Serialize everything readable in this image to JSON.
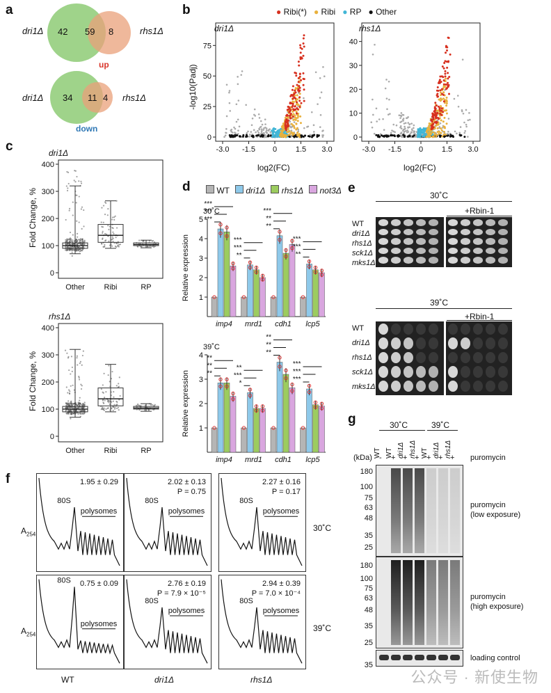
{
  "panels": {
    "a": "a",
    "b": "b",
    "c": "c",
    "d": "d",
    "e": "e",
    "f": "f",
    "g": "g"
  },
  "venn": {
    "up": {
      "left_label": "dri1Δ",
      "right_label": "rhs1Δ",
      "left_only": 42,
      "both": 59,
      "right_only": 8,
      "caption": "up",
      "caption_color": "#d9352b"
    },
    "down": {
      "left_label": "dri1Δ",
      "right_label": "rhs1Δ",
      "left_only": 34,
      "both": 11,
      "right_only": 4,
      "caption": "down",
      "caption_color": "#2f78b5"
    },
    "colors": {
      "left": "#9fd38a",
      "right": "#f2a98a"
    }
  },
  "volcano": {
    "legend": [
      {
        "label": "Ribi(*)",
        "color": "#d7301f"
      },
      {
        "label": "Ribi",
        "color": "#e9b13d"
      },
      {
        "label": "RP",
        "color": "#41b6d6"
      },
      {
        "label": "Other",
        "color": "#111111"
      }
    ],
    "ylabel": "-log10(Padj)",
    "xlabel": "log2(FC)",
    "left": {
      "title": "dri1Δ",
      "yticks": [
        "0",
        "25",
        "50",
        "75"
      ],
      "xticks": [
        "-3.0",
        "-1.5",
        "0",
        "1.5",
        "3.0"
      ]
    },
    "right": {
      "title": "rhs1Δ",
      "yticks": [
        "0",
        "10",
        "20",
        "30",
        "40"
      ],
      "xticks": [
        "-3.0",
        "-1.5",
        "0",
        "1.5",
        "3.0"
      ]
    }
  },
  "boxplots": {
    "ylabel": "Fold Change, %",
    "categories": [
      "Other",
      "Ribi",
      "RP"
    ],
    "yticks": [
      "0",
      "100",
      "200",
      "300",
      "400"
    ],
    "top": {
      "title": "dri1Δ"
    },
    "bottom": {
      "title": "rhs1Δ"
    }
  },
  "bars": {
    "legend": [
      {
        "label": "WT",
        "color": "#b5b5b5"
      },
      {
        "label": "dri1Δ",
        "color": "#8ec9ea"
      },
      {
        "label": "rhs1Δ",
        "color": "#9ccc5f"
      },
      {
        "label": "not3Δ",
        "color": "#d9a6df"
      }
    ],
    "ylabel": "Relative expression",
    "genes": [
      "imp4",
      "mrd1",
      "cdh1",
      "lcp5"
    ],
    "yticks": [
      "1",
      "2",
      "3",
      "4",
      "5"
    ],
    "sig30": [
      [
        "***",
        "***",
        "***"
      ],
      [
        "**",
        "***",
        "***"
      ],
      [
        "**",
        "**",
        "***"
      ],
      [
        "**",
        "***",
        "***"
      ]
    ],
    "sig39": [
      [
        "**",
        "**",
        "**"
      ],
      [
        "*",
        "***",
        "**"
      ],
      [
        "**",
        "**",
        "**"
      ],
      [
        "***",
        "***",
        "***"
      ]
    ]
  },
  "chart_data": [
    {
      "type": "bar",
      "title": "30˚C",
      "categories": [
        "imp4",
        "mrd1",
        "cdh1",
        "lcp5"
      ],
      "series": [
        {
          "name": "WT",
          "values": [
            1,
            1,
            1,
            1
          ]
        },
        {
          "name": "dri1Δ",
          "values": [
            4.5,
            2.65,
            4.15,
            2.7
          ]
        },
        {
          "name": "rhs1Δ",
          "values": [
            4.35,
            2.4,
            3.25,
            2.4
          ]
        },
        {
          "name": "not3Δ",
          "values": [
            2.6,
            2.0,
            3.7,
            2.25
          ]
        }
      ],
      "ylabel": "Relative expression",
      "ylim": [
        0,
        5
      ]
    },
    {
      "type": "bar",
      "title": "39˚C",
      "categories": [
        "imp4",
        "mrd1",
        "cdh1",
        "lcp5"
      ],
      "series": [
        {
          "name": "WT",
          "values": [
            1,
            1,
            1,
            1
          ]
        },
        {
          "name": "dri1Δ",
          "values": [
            2.85,
            2.45,
            3.7,
            2.6
          ]
        },
        {
          "name": "rhs1Δ",
          "values": [
            2.85,
            1.8,
            3.2,
            1.95
          ]
        },
        {
          "name": "not3Δ",
          "values": [
            2.3,
            1.8,
            2.65,
            1.9
          ]
        }
      ],
      "ylabel": "Relative expression",
      "ylim": [
        0,
        4
      ]
    }
  ],
  "spots": {
    "temp30": "30˚C",
    "temp39": "39˚C",
    "rbin": "+Rbin-1",
    "strains": [
      "WT",
      "dri1Δ",
      "rhs1Δ",
      "sck1Δ",
      "mks1Δ"
    ],
    "growth30": [
      5,
      5,
      5,
      5,
      5
    ],
    "growth39": [
      1,
      3,
      3,
      5,
      5
    ],
    "growth39rbin": [
      0,
      2,
      0,
      1,
      1
    ]
  },
  "profiles": {
    "ylabel": "A",
    "ysub": "254",
    "temps": [
      "30˚C",
      "39˚C"
    ],
    "strains": [
      "WT",
      "dri1Δ",
      "rhs1Δ"
    ],
    "peak": "80S",
    "polysomes": "polysomes",
    "stats30": [
      [
        "1.95 ± 0.29",
        ""
      ],
      [
        "2.02 ± 0.13",
        "P = 0.75"
      ],
      [
        "2.27 ± 0.16",
        "P = 0.17"
      ]
    ],
    "stats39": [
      [
        "0.75 ± 0.09",
        ""
      ],
      [
        "2.76 ± 0.19",
        "P = 7.9 × 10⁻⁵"
      ],
      [
        "2.94 ± 0.39",
        "P = 7.0 × 10⁻⁴"
      ]
    ]
  },
  "western": {
    "temp30": "30˚C",
    "temp39": "39˚C",
    "lanes": [
      "WT",
      "WT",
      "dri1Δ",
      "rhs1Δ",
      "WT",
      "dri1Δ",
      "rhs1Δ"
    ],
    "puro": [
      "-",
      "+",
      "+",
      "+",
      "+",
      "+",
      "+"
    ],
    "puro_label": "puromycin",
    "kda": "(kDa)",
    "markers_top": [
      "180",
      "100",
      "75",
      "63",
      "48",
      "35",
      "25"
    ],
    "markers_mid": [
      "180",
      "100",
      "75",
      "63",
      "48",
      "35",
      "25"
    ],
    "marker_bottom": "35",
    "label_low": "puromycin\n(low exposure)",
    "label_low1": "puromycin",
    "label_low2": "(low exposure)",
    "label_high1": "puromycin",
    "label_high2": "(high exposure)",
    "label_loading": "loading control"
  },
  "watermark": "公众号 · 新使生物"
}
